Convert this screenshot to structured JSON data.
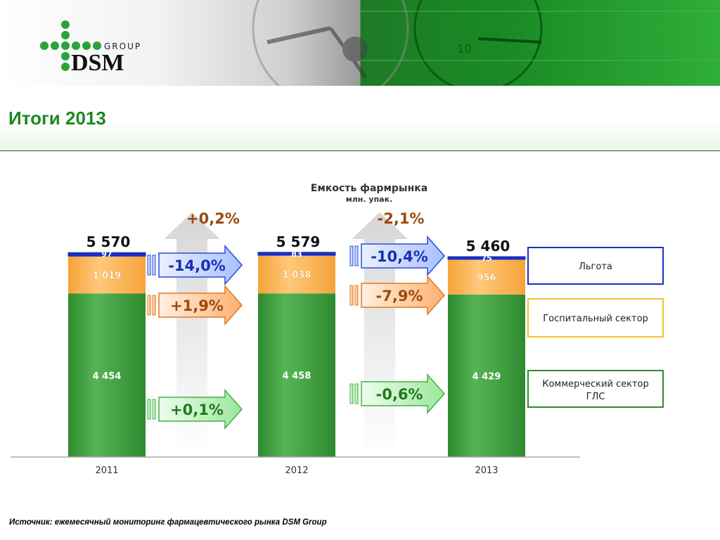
{
  "brand": {
    "logo_word": "DSM",
    "logo_sub": "GROUP"
  },
  "title": "Итоги 2013",
  "footer": {
    "source": "Источник: ежемесячный мониторинг фармацевтического рынка DSM Group"
  },
  "colors": {
    "commercial": "#3c9a3c",
    "hospital": "#ffa940",
    "benefit": "#1a2fc4",
    "title_green": "#1b8a1f",
    "change_brown": "#9b4a10"
  },
  "chart_data": {
    "type": "bar",
    "stacked": true,
    "title": "Емкость фармрынка",
    "subtitle": "млн. упак.",
    "categories": [
      "2011",
      "2012",
      "2013"
    ],
    "totals": [
      "5 570",
      "5 579",
      "5 460"
    ],
    "series": [
      {
        "name": "Коммерческий сектор ГЛС",
        "key": "commercial",
        "values": [
          4454,
          4458,
          4429
        ],
        "labels": [
          "4 454",
          "4 458",
          "4 429"
        ]
      },
      {
        "name": "Госпитальный сектор",
        "key": "hospital",
        "values": [
          1019,
          1038,
          956
        ],
        "labels": [
          "1 019",
          "1 038",
          "956"
        ]
      },
      {
        "name": "Льгота",
        "key": "benefit",
        "values": [
          97,
          83,
          75
        ],
        "labels": [
          "97",
          "83",
          "75"
        ]
      }
    ],
    "total_changes": [
      "+0,2%",
      "-2,1%"
    ],
    "segment_changes": [
      {
        "benefit": "-14,0%",
        "hospital": "+1,9%",
        "commercial": "+0,1%"
      },
      {
        "benefit": "-10,4%",
        "hospital": "-7,9%",
        "commercial": "-0,6%"
      }
    ],
    "legend_position": "right",
    "grid": false
  }
}
